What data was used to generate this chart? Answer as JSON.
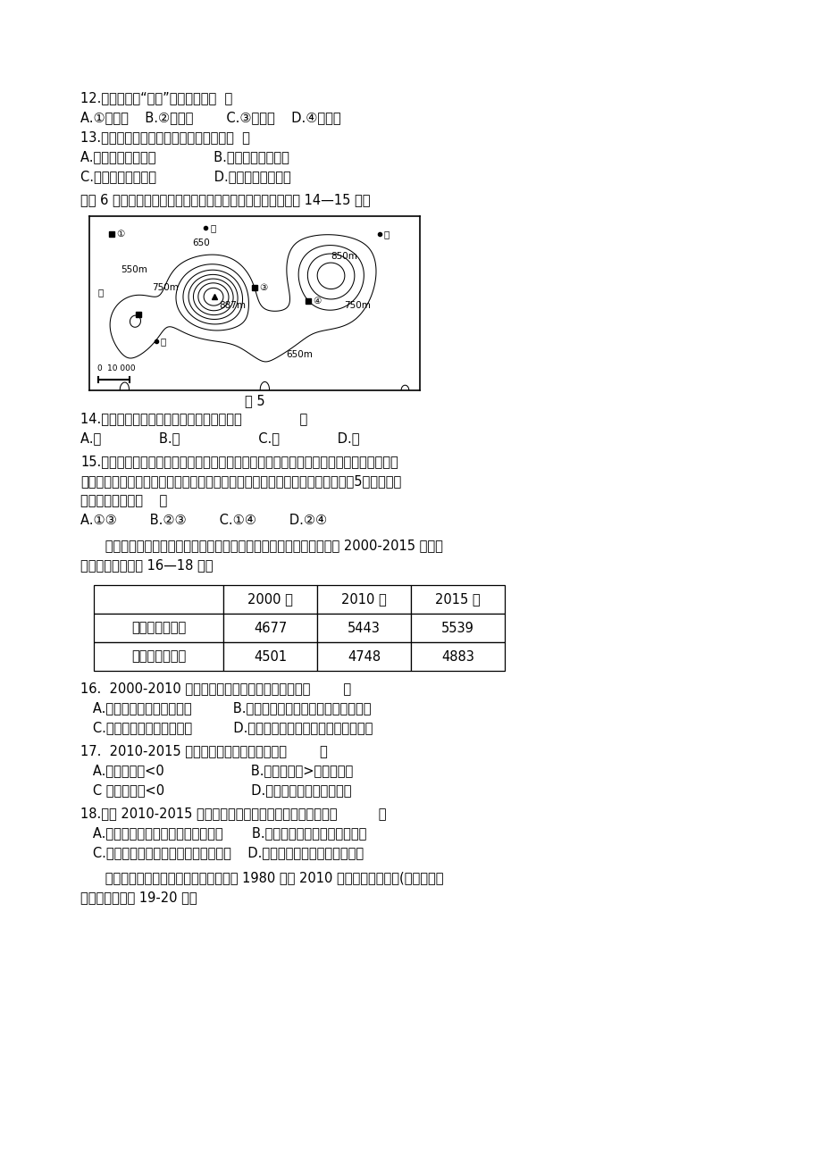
{
  "bg_color": "#ffffff",
  "text_color": "#000000",
  "top_margin_lines": [
    "",
    "",
    "12.据图可知，“热点”位于图中的（  ）",
    "A.①处附近    B.②处附近        C.③处附近    D.④处附近",
    "13.由岛链的分布可知，此板块的移动方（  ）",
    "A.先往正北再往西北              B.先往东南再往正东",
    "C.先往西北再往正北              D.先往正南再往东南"
  ],
  "intro_text": "下图 6 为某地等高线地形图，一猎人欲到该地打猎。读图回答 14—15 题。",
  "figure_caption": "图 5",
  "q14_lines": [
    "14.猎人登上山顶，可能看到猎物的地点是（              ）",
    "A.甲              B.乙                   C.丙              D.丁"
  ],
  "q15_lines": [
    "15.猎人熟悉动物习性，知道山羊喜欢在陵峻的山崖活动，而水鹿被追赶过后，会寻找有水",
    "的地方喝水。在这次打猎中，他捕获了山羊和水鹿，请问他最有可能分别在《图5》中哪两处",
    "捕获这两种动物（    ）",
    "A.①③        B.②③        C.①④        D.②④"
  ],
  "intro2_lines": [
    "      经济、人口增长是困扰我国当前发展的两大问题。下表是我国浙江省 2000-2015 年人口",
    "统计表，据此完成 16—18 题。"
  ],
  "table_header": [
    "",
    "2000 年",
    "2010 年",
    "2015 年"
  ],
  "table_row1": [
    "常住人口（万）",
    "4677",
    "5443",
    "5539"
  ],
  "table_row2": [
    "户籍人口（万）",
    "4501",
    "4748",
    "4883"
  ],
  "q16_lines": [
    "16.  2000-2010 年浙江省经济与人口之间的关系是（        ）",
    "   A.人口增长快，就业压力大          B.经济增长缓慢，外来劳动力拉力减少",
    "   C.产业结构调整，人口外迁          D.劳动密集型企业集聚，吸引外来劳工"
  ],
  "q17_lines": [
    "17.  2010-2015 年浙江省人口增长的状况是（        ）",
    "   A.机械增长率<0                     B.机械增长率>自然增长率",
    "   C 自然增长率<0                     D.机械增长率＝自然增长率"
  ],
  "q18_lines": [
    "18.形成 2010-2015 年浙江省人口增长状况的最主要原因是（          ）",
    "   A.城市化发展快城市人口出生率偏低       B.环境污染严重，本省人口外迁",
    "   C.我国二孯政策出台，人口出生率大增    D.产业转移，外来劳工大幅减少"
  ],
  "q19_lines": [
    "      下表反映了我国某农作物的主产省区在 1980 年至 2010 年种植面积的变化(单位：千公",
    "顼）。读表完成 19-20 题。"
  ]
}
